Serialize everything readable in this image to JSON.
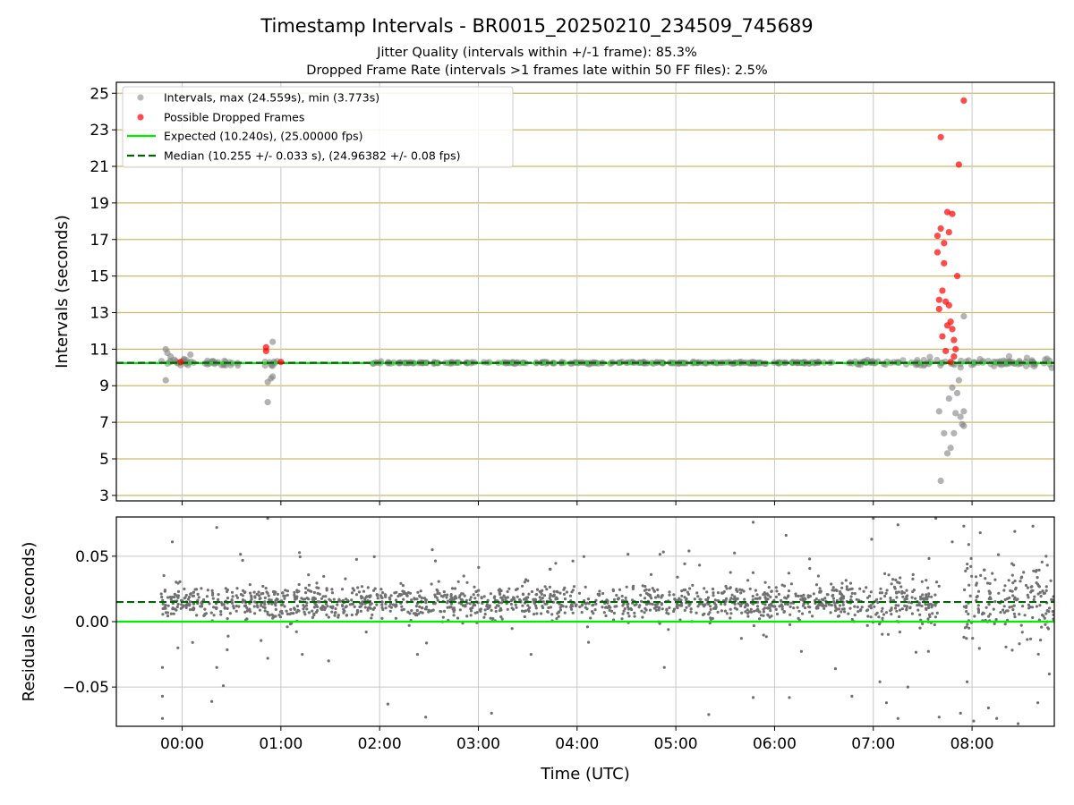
{
  "chart_data": [
    {
      "type": "scatter",
      "title": "Timestamp Intervals - BR0015_20250210_234509_745689",
      "subtitle_lines": [
        "Jitter Quality (intervals within +/-1 frame): 85.3%",
        "Dropped Frame Rate (intervals >1 frames late within 50 FF files): 2.5%"
      ],
      "xlabel": "",
      "ylabel": "Intervals (seconds)",
      "xlim": [
        "23:20",
        "08:50"
      ],
      "ylim": [
        2.7,
        25.6
      ],
      "yticks": [
        3,
        5,
        7,
        9,
        11,
        13,
        15,
        17,
        19,
        21,
        23,
        25
      ],
      "grid": true,
      "legend_position": "upper-left",
      "legend": [
        "Intervals, max (24.559s), min (3.773s)",
        "Possible Dropped Frames",
        "Expected (10.240s), (25.00000 fps)",
        "Median (10.255 +/- 0.033 s), (24.96382 +/- 0.08 fps)"
      ],
      "colors": {
        "intervals": "#808080",
        "dropped": "#ff0000",
        "expected": "#00ee00",
        "median": "#006400",
        "ygrid": "#d2b766",
        "xgrid": "#c8c8c8"
      },
      "reference_lines": {
        "expected": 10.24,
        "median": 10.255
      },
      "intervals_sample": [
        {
          "x": "23:50",
          "y": 11.0
        },
        {
          "x": "23:50",
          "y": 9.3
        },
        {
          "x": "23:51",
          "y": 10.8
        },
        {
          "x": "23:53",
          "y": 10.6
        },
        {
          "x": "00:05",
          "y": 10.7
        },
        {
          "x": "00:52",
          "y": 8.1
        },
        {
          "x": "00:52",
          "y": 9.2
        },
        {
          "x": "00:54",
          "y": 9.4
        },
        {
          "x": "00:55",
          "y": 11.4
        },
        {
          "x": "00:55",
          "y": 9.5
        },
        {
          "x": "07:40",
          "y": 7.6
        },
        {
          "x": "07:41",
          "y": 3.8
        },
        {
          "x": "07:43",
          "y": 6.4
        },
        {
          "x": "07:45",
          "y": 5.3
        },
        {
          "x": "07:46",
          "y": 8.3
        },
        {
          "x": "07:47",
          "y": 5.6
        },
        {
          "x": "07:48",
          "y": 8.9
        },
        {
          "x": "07:49",
          "y": 6.4
        },
        {
          "x": "07:50",
          "y": 7.5
        },
        {
          "x": "07:51",
          "y": 8.6
        },
        {
          "x": "07:52",
          "y": 9.3
        },
        {
          "x": "07:53",
          "y": 7.3
        },
        {
          "x": "07:54",
          "y": 6.9
        },
        {
          "x": "07:55",
          "y": 12.8
        },
        {
          "x": "07:55",
          "y": 6.8
        },
        {
          "x": "07:55",
          "y": 7.6
        }
      ],
      "dropped_frames": [
        {
          "x": "23:59",
          "y": 10.3
        },
        {
          "x": "00:51",
          "y": 11.1
        },
        {
          "x": "00:51",
          "y": 10.9
        },
        {
          "x": "01:00",
          "y": 10.3
        },
        {
          "x": "07:39",
          "y": 17.2
        },
        {
          "x": "07:39",
          "y": 16.3
        },
        {
          "x": "07:40",
          "y": 13.7
        },
        {
          "x": "07:40",
          "y": 13.2
        },
        {
          "x": "07:41",
          "y": 22.6
        },
        {
          "x": "07:41",
          "y": 17.6
        },
        {
          "x": "07:42",
          "y": 14.2
        },
        {
          "x": "07:42",
          "y": 11.7
        },
        {
          "x": "07:43",
          "y": 16.8
        },
        {
          "x": "07:43",
          "y": 15.7
        },
        {
          "x": "07:44",
          "y": 13.6
        },
        {
          "x": "07:45",
          "y": 12.3
        },
        {
          "x": "07:45",
          "y": 18.5
        },
        {
          "x": "07:46",
          "y": 17.4
        },
        {
          "x": "07:46",
          "y": 13.4
        },
        {
          "x": "07:47",
          "y": 12.5
        },
        {
          "x": "07:48",
          "y": 18.4
        },
        {
          "x": "07:48",
          "y": 12.1
        },
        {
          "x": "07:49",
          "y": 10.6
        },
        {
          "x": "07:49",
          "y": 11.5
        },
        {
          "x": "07:50",
          "y": 11.0
        },
        {
          "x": "07:51",
          "y": 15.0
        },
        {
          "x": "07:52",
          "y": 21.1
        },
        {
          "x": "07:55",
          "y": 24.6
        },
        {
          "x": "07:44",
          "y": 10.9
        },
        {
          "x": "07:47",
          "y": 10.3
        }
      ]
    },
    {
      "type": "scatter",
      "xlabel": "Time (UTC)",
      "ylabel": "Residuals (seconds)",
      "xlim": [
        "23:20",
        "08:50"
      ],
      "ylim": [
        -0.08,
        0.08
      ],
      "yticks": [
        -0.05,
        0.0,
        0.05
      ],
      "ytick_labels": [
        "−0.05",
        "0.00",
        "0.05"
      ],
      "xticks": [
        "00:00",
        "01:00",
        "02:00",
        "03:00",
        "04:00",
        "05:00",
        "06:00",
        "07:00",
        "08:00"
      ],
      "grid": true,
      "reference_lines": {
        "expected": 0.0,
        "median": 0.015
      },
      "residuals_band": {
        "center": 0.015,
        "spread": 0.009
      },
      "residual_outliers": [
        {
          "x": "23:48",
          "y": -0.035
        },
        {
          "x": "23:48",
          "y": -0.057
        },
        {
          "x": "23:48",
          "y": -0.074
        },
        {
          "x": "23:54",
          "y": 0.061
        },
        {
          "x": "00:18",
          "y": -0.061
        },
        {
          "x": "00:21",
          "y": 0.072
        },
        {
          "x": "00:21",
          "y": -0.035
        },
        {
          "x": "00:25",
          "y": -0.049
        },
        {
          "x": "00:52",
          "y": 0.079
        },
        {
          "x": "00:52",
          "y": -0.028
        },
        {
          "x": "01:13",
          "y": -0.025
        },
        {
          "x": "01:29",
          "y": -0.03
        },
        {
          "x": "02:05",
          "y": -0.063
        },
        {
          "x": "02:23",
          "y": -0.025
        },
        {
          "x": "02:28",
          "y": -0.073
        },
        {
          "x": "02:32",
          "y": 0.055
        },
        {
          "x": "03:08",
          "y": -0.07
        },
        {
          "x": "03:32",
          "y": -0.025
        },
        {
          "x": "04:45",
          "y": 0.036
        },
        {
          "x": "04:53",
          "y": -0.035
        },
        {
          "x": "05:08",
          "y": 0.054
        },
        {
          "x": "05:20",
          "y": -0.071
        },
        {
          "x": "05:47",
          "y": 0.076
        },
        {
          "x": "05:47",
          "y": -0.058
        },
        {
          "x": "06:07",
          "y": 0.066
        },
        {
          "x": "06:09",
          "y": -0.058
        },
        {
          "x": "06:37",
          "y": -0.036
        },
        {
          "x": "06:47",
          "y": -0.057
        },
        {
          "x": "06:59",
          "y": 0.063
        },
        {
          "x": "07:00",
          "y": 0.079
        },
        {
          "x": "07:04",
          "y": -0.046
        },
        {
          "x": "07:08",
          "y": -0.062
        },
        {
          "x": "07:15",
          "y": 0.074
        },
        {
          "x": "07:15",
          "y": -0.074
        },
        {
          "x": "07:21",
          "y": -0.05
        },
        {
          "x": "07:38",
          "y": 0.079
        },
        {
          "x": "07:40",
          "y": -0.073
        },
        {
          "x": "07:48",
          "y": 0.061
        },
        {
          "x": "07:53",
          "y": -0.07
        },
        {
          "x": "07:55",
          "y": 0.073
        },
        {
          "x": "07:57",
          "y": -0.046
        },
        {
          "x": "07:58",
          "y": 0.059
        },
        {
          "x": "08:01",
          "y": -0.076
        },
        {
          "x": "08:05",
          "y": 0.068
        },
        {
          "x": "08:10",
          "y": -0.066
        },
        {
          "x": "08:15",
          "y": -0.074
        },
        {
          "x": "08:26",
          "y": 0.069
        },
        {
          "x": "08:28",
          "y": -0.078
        },
        {
          "x": "08:37",
          "y": 0.073
        },
        {
          "x": "08:40",
          "y": -0.062
        },
        {
          "x": "08:45",
          "y": 0.05
        },
        {
          "x": "08:47",
          "y": -0.04
        }
      ]
    }
  ]
}
